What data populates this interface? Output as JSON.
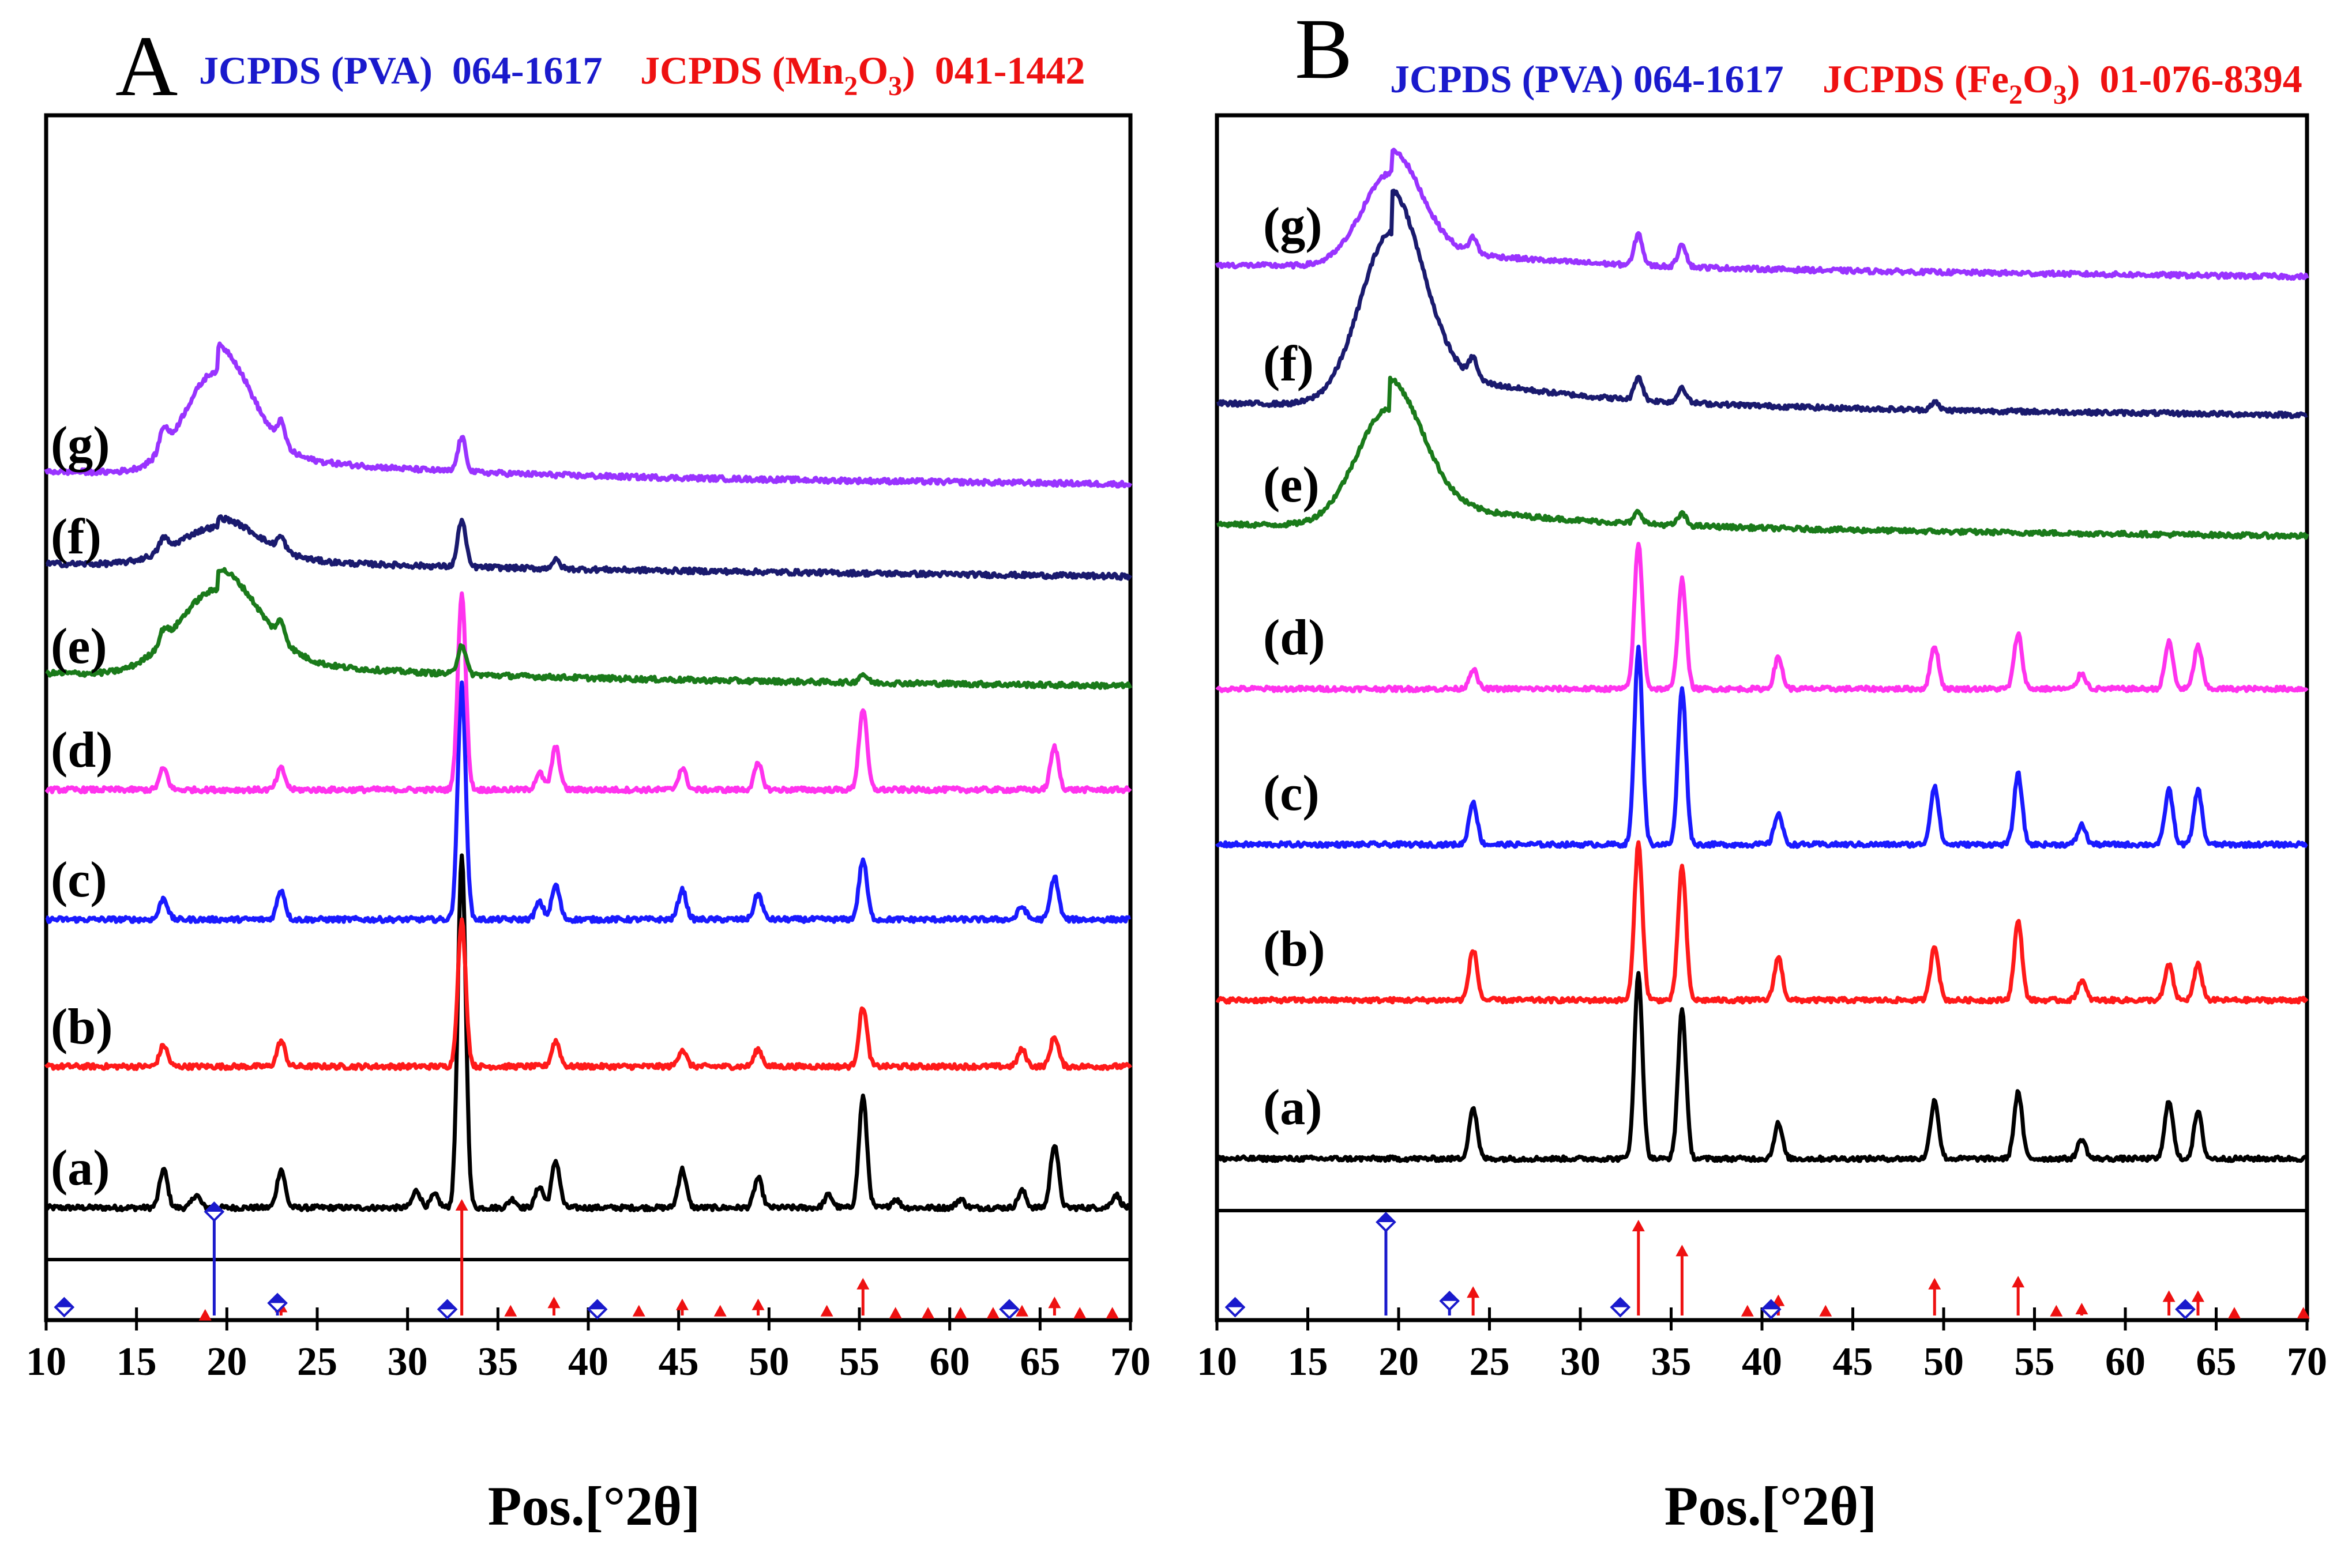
{
  "chart_data": [
    {
      "type": "line",
      "panel_label": "A",
      "reference_blue": "JCPDS (PVA)  064-1617",
      "reference_red": "JCPDS (Mn2O3)  041-1442",
      "reference_red_parts": {
        "prefix": "JCPDS (Mn",
        "sub1": "2",
        "mid": "O",
        "sub2": "3",
        "suffix": ")  041-1442"
      },
      "xlabel": "Pos.[°2θ]",
      "ylabel": "",
      "xlim": [
        10,
        70
      ],
      "xticks": [
        10,
        15,
        20,
        25,
        30,
        35,
        40,
        45,
        50,
        55,
        60,
        65,
        70
      ],
      "series": [
        {
          "name": "(a)",
          "color": "#000000",
          "offset": 0.0,
          "peaks": [
            [
              16.5,
              0.09
            ],
            [
              18.3,
              0.03
            ],
            [
              23.0,
              0.09
            ],
            [
              30.5,
              0.04
            ],
            [
              31.5,
              0.03
            ],
            [
              33.0,
              0.82
            ],
            [
              35.8,
              0.02
            ],
            [
              37.3,
              0.05
            ],
            [
              38.2,
              0.11
            ],
            [
              45.2,
              0.09
            ],
            [
              49.4,
              0.07
            ],
            [
              53.3,
              0.03
            ],
            [
              55.2,
              0.26
            ],
            [
              57.0,
              0.02
            ],
            [
              60.6,
              0.02
            ],
            [
              64.0,
              0.04
            ],
            [
              65.8,
              0.15
            ],
            [
              69.2,
              0.03
            ]
          ]
        },
        {
          "name": "(b)",
          "color": "#ff1a1a",
          "offset": 0.85,
          "peaks": [
            [
              16.5,
              0.05
            ],
            [
              23.0,
              0.06
            ],
            [
              33.0,
              0.34
            ],
            [
              38.2,
              0.06
            ],
            [
              45.2,
              0.04
            ],
            [
              49.4,
              0.04
            ],
            [
              55.2,
              0.14
            ],
            [
              64.0,
              0.04
            ],
            [
              65.8,
              0.07
            ]
          ]
        },
        {
          "name": "(c)",
          "color": "#1a1aff",
          "offset": 1.6,
          "peaks": [
            [
              16.5,
              0.05
            ],
            [
              23.0,
              0.07
            ],
            [
              33.0,
              0.55
            ],
            [
              37.3,
              0.04
            ],
            [
              38.2,
              0.08
            ],
            [
              45.2,
              0.07
            ],
            [
              49.4,
              0.06
            ],
            [
              55.2,
              0.14
            ],
            [
              64.0,
              0.03
            ],
            [
              65.8,
              0.1
            ]
          ]
        },
        {
          "name": "(d)",
          "color": "#ff33ee",
          "offset": 2.4,
          "peaks": [
            [
              16.5,
              0.05
            ],
            [
              23.0,
              0.05
            ],
            [
              33.0,
              0.46
            ],
            [
              37.3,
              0.04
            ],
            [
              38.2,
              0.1
            ],
            [
              45.2,
              0.05
            ],
            [
              49.4,
              0.06
            ],
            [
              55.2,
              0.19
            ],
            [
              65.8,
              0.1
            ]
          ]
        },
        {
          "name": "(e)",
          "color": "#1a7a1a",
          "offset": 2.95,
          "broad": [
            [
              19.5,
              0.2,
              2.2
            ]
          ],
          "peaks": [
            [
              16.5,
              0.03
            ],
            [
              23.0,
              0.04
            ],
            [
              33.0,
              0.07
            ],
            [
              55.2,
              0.02
            ]
          ]
        },
        {
          "name": "(f)",
          "color": "#1a1a6e",
          "offset": 3.55,
          "broad": [
            [
              19.5,
              0.09,
              2.2
            ]
          ],
          "peaks": [
            [
              16.5,
              0.03
            ],
            [
              23.0,
              0.03
            ],
            [
              33.0,
              0.11
            ],
            [
              38.2,
              0.02
            ]
          ]
        },
        {
          "name": "(g)",
          "color": "#9933ff",
          "offset": 4.05,
          "broad": [
            [
              19.5,
              0.24,
              1.8
            ]
          ],
          "peaks": [
            [
              16.5,
              0.05
            ],
            [
              23.0,
              0.05
            ],
            [
              33.0,
              0.08
            ]
          ]
        }
      ],
      "reference_sticks": {
        "blue": [
          [
            11.0,
            0.04
          ],
          [
            19.3,
            0.5
          ],
          [
            22.8,
            0.06
          ],
          [
            32.2,
            0.03
          ],
          [
            40.5,
            0.03
          ],
          [
            63.3,
            0.03
          ]
        ],
        "red": [
          [
            18.8,
            0.02
          ],
          [
            23.0,
            0.06
          ],
          [
            33.0,
            0.55
          ],
          [
            35.7,
            0.04
          ],
          [
            38.1,
            0.08
          ],
          [
            42.8,
            0.04
          ],
          [
            45.2,
            0.07
          ],
          [
            47.3,
            0.04
          ],
          [
            49.4,
            0.07
          ],
          [
            53.2,
            0.04
          ],
          [
            55.2,
            0.17
          ],
          [
            57.0,
            0.03
          ],
          [
            58.8,
            0.03
          ],
          [
            60.6,
            0.03
          ],
          [
            62.4,
            0.03
          ],
          [
            64.0,
            0.04
          ],
          [
            65.8,
            0.08
          ],
          [
            67.2,
            0.03
          ],
          [
            69.0,
            0.03
          ]
        ]
      }
    },
    {
      "type": "line",
      "panel_label": "B",
      "reference_blue": "JCPDS (PVA) 064-1617",
      "reference_red": "JCPDS (Fe2O3)  01-076-8394",
      "reference_red_parts": {
        "prefix": "JCPDS (Fe",
        "sub1": "2",
        "mid": "O",
        "sub2": "3",
        "suffix": ")  01-076-8394"
      },
      "xlabel": "Pos.[°2θ]",
      "ylabel": "",
      "xlim": [
        10,
        70
      ],
      "xticks": [
        10,
        15,
        20,
        25,
        30,
        35,
        40,
        45,
        50,
        55,
        60,
        65,
        70
      ],
      "series": [
        {
          "name": "(a)",
          "color": "#000000",
          "offset": 0.0,
          "peaks": [
            [
              24.1,
              0.13
            ],
            [
              33.2,
              0.47
            ],
            [
              35.6,
              0.38
            ],
            [
              40.9,
              0.09
            ],
            [
              49.5,
              0.15
            ],
            [
              54.1,
              0.17
            ],
            [
              57.6,
              0.05
            ],
            [
              62.4,
              0.15
            ],
            [
              64.0,
              0.12
            ]
          ]
        },
        {
          "name": "(b)",
          "color": "#ff1a1a",
          "offset": 0.55,
          "peaks": [
            [
              24.1,
              0.13
            ],
            [
              33.2,
              0.4
            ],
            [
              35.6,
              0.34
            ],
            [
              40.9,
              0.11
            ],
            [
              49.5,
              0.14
            ],
            [
              54.1,
              0.2
            ],
            [
              57.6,
              0.05
            ],
            [
              62.4,
              0.09
            ],
            [
              64.0,
              0.09
            ]
          ]
        },
        {
          "name": "(c)",
          "color": "#1a1aff",
          "offset": 1.1,
          "peaks": [
            [
              24.1,
              0.11
            ],
            [
              33.2,
              0.5
            ],
            [
              35.6,
              0.4
            ],
            [
              40.9,
              0.08
            ],
            [
              49.5,
              0.15
            ],
            [
              54.1,
              0.18
            ],
            [
              57.6,
              0.05
            ],
            [
              62.4,
              0.14
            ],
            [
              64.0,
              0.14
            ]
          ]
        },
        {
          "name": "(d)",
          "color": "#ff33ee",
          "offset": 1.7,
          "peaks": [
            [
              24.1,
              0.05
            ],
            [
              33.2,
              0.37
            ],
            [
              35.6,
              0.28
            ],
            [
              40.9,
              0.08
            ],
            [
              49.5,
              0.11
            ],
            [
              54.1,
              0.14
            ],
            [
              57.6,
              0.04
            ],
            [
              62.4,
              0.12
            ],
            [
              64.0,
              0.11
            ]
          ]
        },
        {
          "name": "(e)",
          "color": "#1a7a1a",
          "offset": 2.25,
          "broad": [
            [
              19.5,
              0.3,
              1.8
            ]
          ],
          "peaks": [
            [
              33.2,
              0.03
            ],
            [
              35.6,
              0.03
            ]
          ]
        },
        {
          "name": "(f)",
          "color": "#1a1a6e",
          "offset": 2.7,
          "broad": [
            [
              19.6,
              0.44,
              1.7
            ]
          ],
          "peaks": [
            [
              24.1,
              0.05
            ],
            [
              33.2,
              0.06
            ],
            [
              35.6,
              0.04
            ],
            [
              49.5,
              0.02
            ]
          ]
        },
        {
          "name": "(g)",
          "color": "#9933ff",
          "offset": 3.3,
          "broad": [
            [
              19.6,
              0.24,
              1.6
            ]
          ],
          "peaks": [
            [
              24.1,
              0.04
            ],
            [
              33.2,
              0.08
            ],
            [
              35.6,
              0.06
            ]
          ]
        }
      ],
      "reference_sticks": {
        "blue": [
          [
            11.0,
            0.04
          ],
          [
            19.3,
            0.45
          ],
          [
            22.8,
            0.07
          ],
          [
            32.2,
            0.04
          ],
          [
            40.5,
            0.03
          ],
          [
            63.3,
            0.03
          ]
        ],
        "red": [
          [
            24.1,
            0.13
          ],
          [
            33.2,
            0.45
          ],
          [
            35.6,
            0.33
          ],
          [
            39.2,
            0.04
          ],
          [
            40.9,
            0.09
          ],
          [
            43.5,
            0.04
          ],
          [
            49.5,
            0.17
          ],
          [
            54.1,
            0.18
          ],
          [
            56.2,
            0.04
          ],
          [
            57.6,
            0.05
          ],
          [
            62.4,
            0.11
          ],
          [
            64.0,
            0.11
          ],
          [
            66.0,
            0.03
          ],
          [
            69.8,
            0.03
          ]
        ]
      }
    }
  ]
}
